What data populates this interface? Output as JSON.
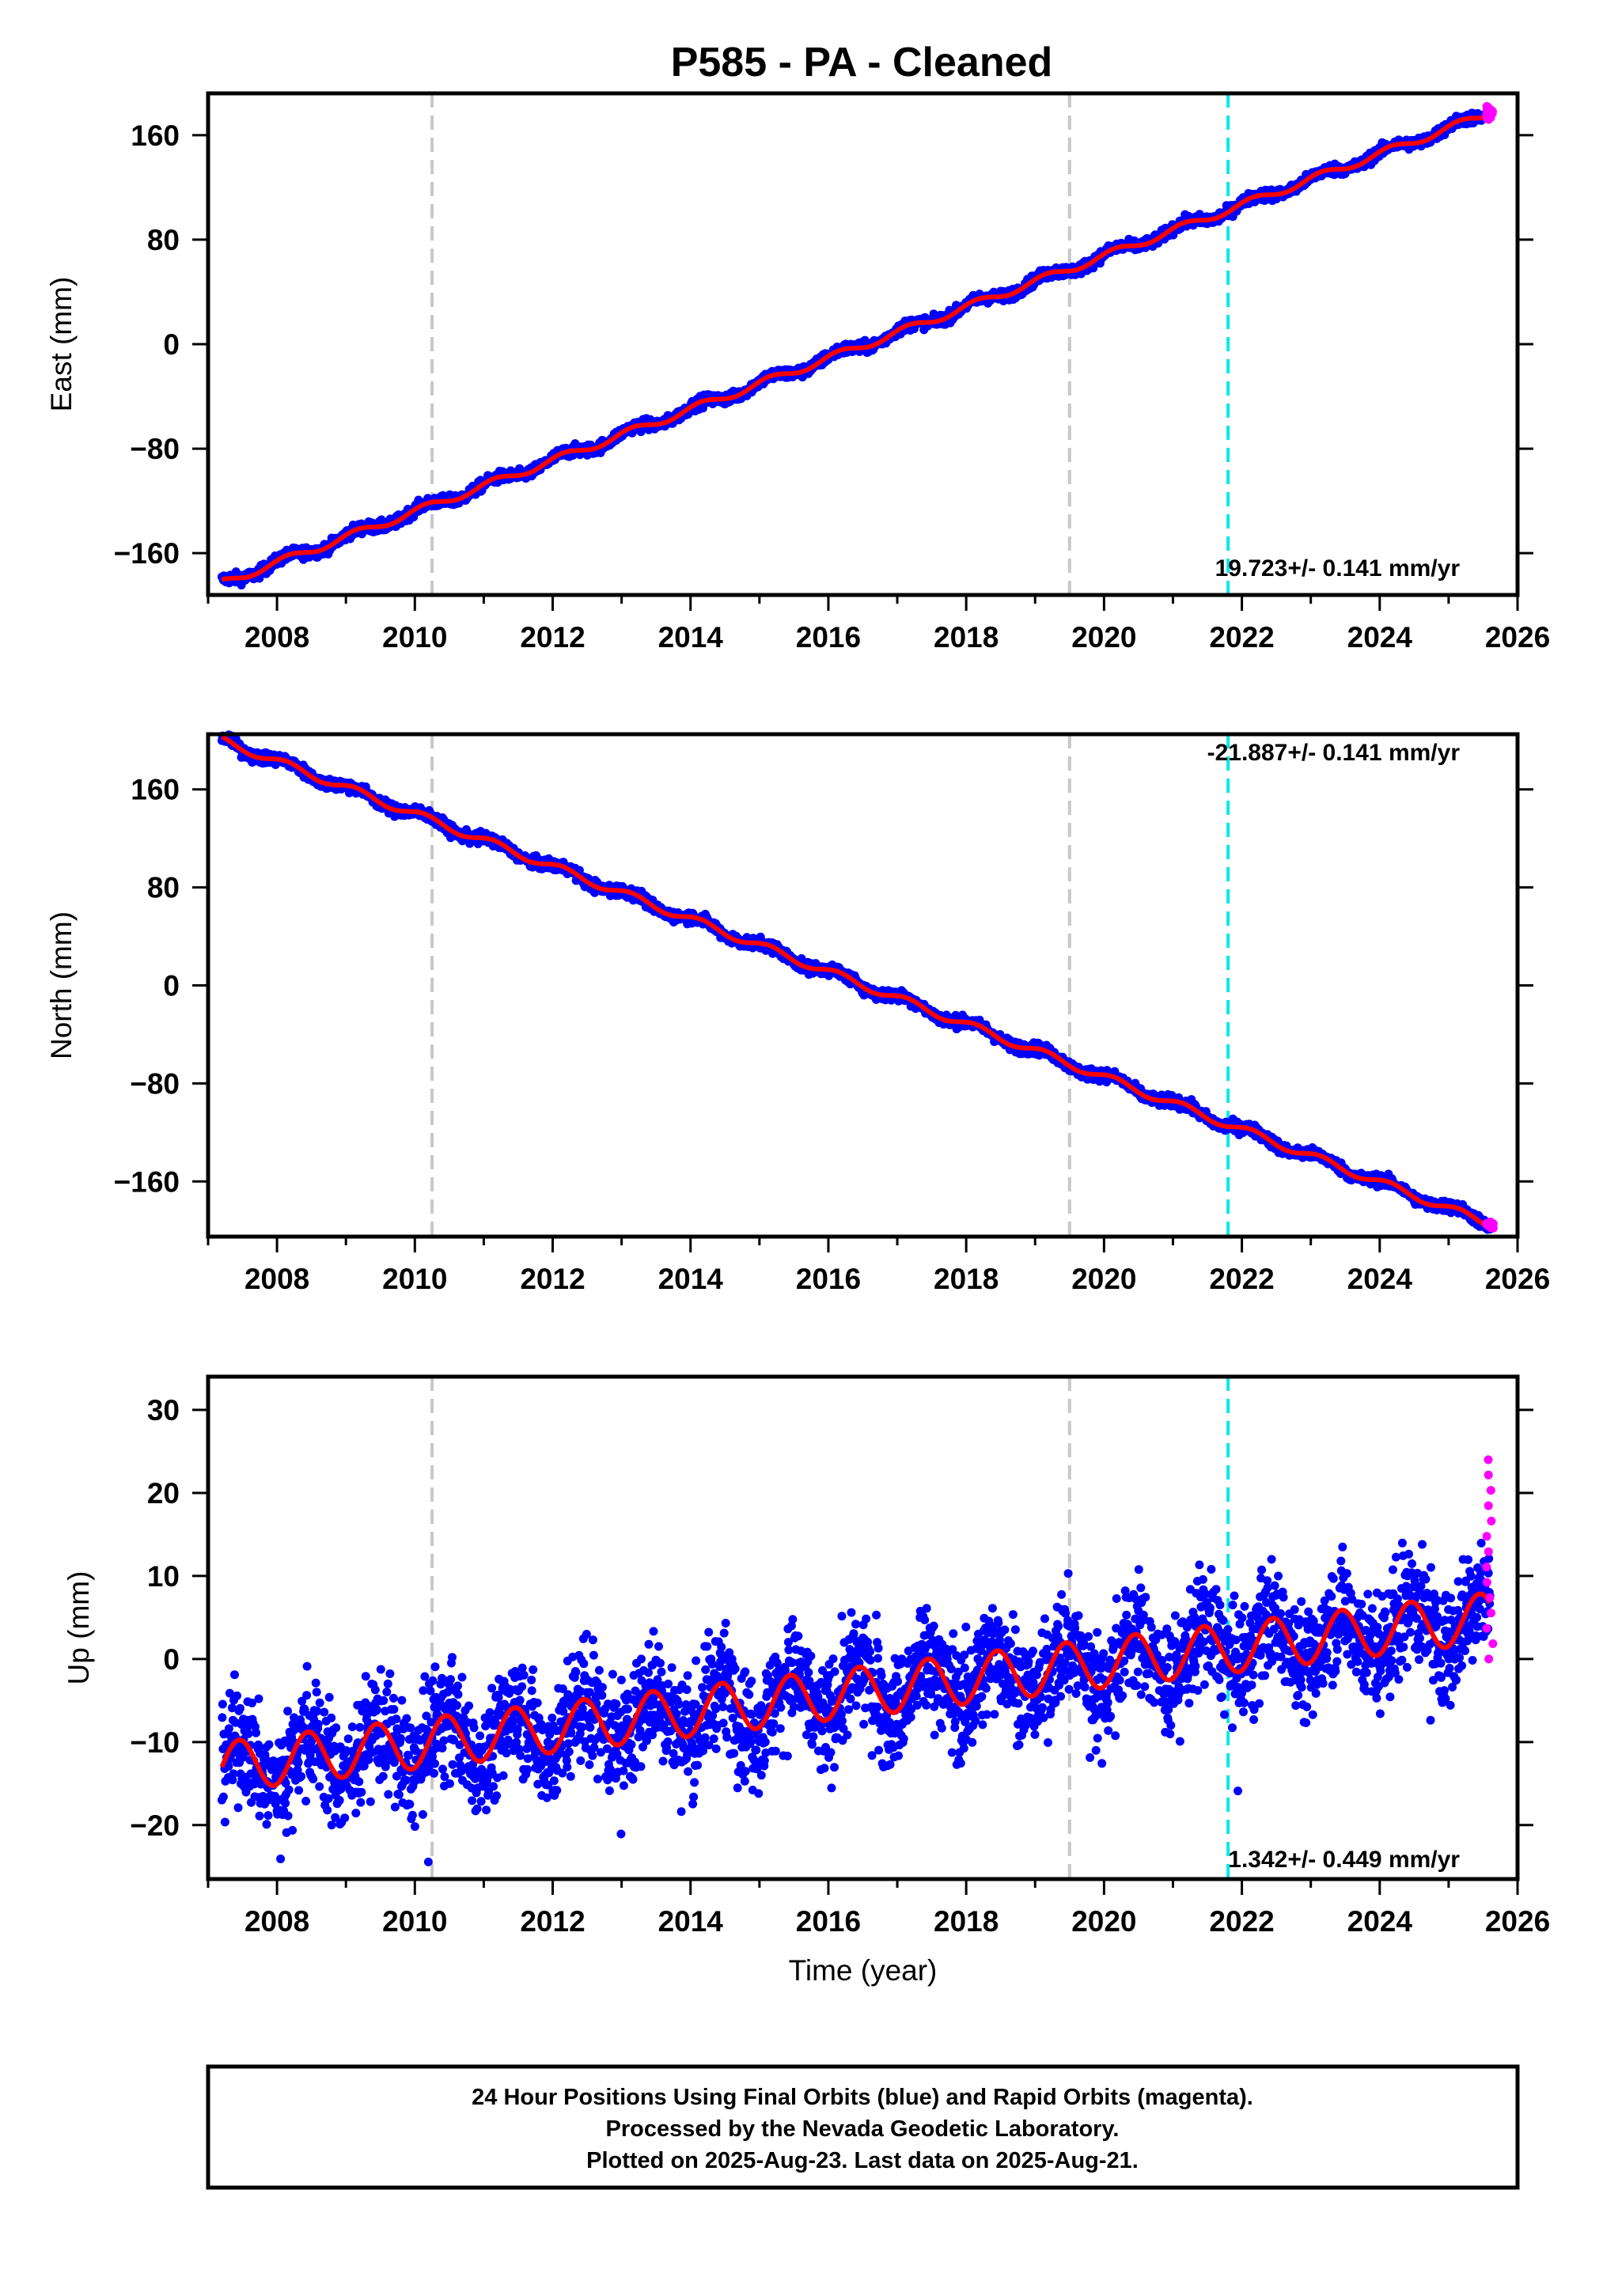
{
  "title": "P585  - PA - Cleaned",
  "chart_data": [
    {
      "type": "scatter",
      "ylabel": "East (mm)",
      "xlabel": "",
      "xlim": [
        2007.0,
        2026.0
      ],
      "ylim": [
        -192,
        192
      ],
      "xticks": [
        "2008",
        "2010",
        "2012",
        "2014",
        "2016",
        "2018",
        "2020",
        "2022",
        "2024",
        "2026"
      ],
      "yticks": [
        "160",
        "80",
        "0",
        "−80",
        "−160"
      ],
      "ytick_values": [
        160,
        80,
        0,
        -80,
        -160
      ],
      "rate_annotation": "19.723+/- 0.141 mm/yr",
      "series": [
        {
          "color": "#0000ff",
          "start": [
            2007.2,
            -183
          ],
          "end": [
            2025.6,
            177
          ]
        },
        {
          "color": "#ff0000",
          "start": [
            2007.2,
            -183
          ],
          "end": [
            2025.6,
            177
          ]
        },
        {
          "color": "#ff00ff",
          "start": [
            2025.55,
            172
          ],
          "end": [
            2025.65,
            182
          ]
        }
      ]
    },
    {
      "type": "scatter",
      "ylabel": "North (mm)",
      "xlabel": "",
      "xlim": [
        2007.0,
        2026.0
      ],
      "ylim": [
        -205,
        205
      ],
      "xticks": [
        "2008",
        "2010",
        "2012",
        "2014",
        "2016",
        "2018",
        "2020",
        "2022",
        "2024",
        "2026"
      ],
      "yticks": [
        "160",
        "80",
        "0",
        "−80",
        "−160"
      ],
      "ytick_values": [
        160,
        80,
        0,
        -80,
        -160
      ],
      "rate_annotation": "-21.887+/- 0.141 mm/yr",
      "series": [
        {
          "color": "#0000ff",
          "start": [
            2007.2,
            200
          ],
          "end": [
            2025.6,
            -195
          ]
        },
        {
          "color": "#ff0000",
          "start": [
            2007.2,
            200
          ],
          "end": [
            2025.6,
            -195
          ]
        },
        {
          "color": "#ff00ff",
          "start": [
            2025.55,
            -193
          ],
          "end": [
            2025.65,
            -198
          ]
        }
      ]
    },
    {
      "type": "scatter",
      "ylabel": "Up (mm)",
      "xlabel": "Time (year)",
      "xlim": [
        2007.0,
        2026.0
      ],
      "ylim": [
        -26.5,
        34
      ],
      "xticks": [
        "2008",
        "2010",
        "2012",
        "2014",
        "2016",
        "2018",
        "2020",
        "2022",
        "2024",
        "2026"
      ],
      "yticks": [
        "30",
        "20",
        "10",
        "0",
        "−10",
        "−20"
      ],
      "ytick_values": [
        30,
        20,
        10,
        0,
        -10,
        -20
      ],
      "rate_annotation": "1.342+/- 0.449 mm/yr",
      "series": [
        {
          "color": "#0000ff",
          "start": [
            2007.2,
            -13
          ],
          "end": [
            2025.6,
            5
          ],
          "seasonal_amplitude_mm": 3
        },
        {
          "color": "#ff0000",
          "start": [
            2007.2,
            -13
          ],
          "end": [
            2025.6,
            5
          ],
          "seasonal_amplitude_mm": 3
        },
        {
          "color": "#ff00ff",
          "start": [
            2025.55,
            0
          ],
          "end": [
            2025.65,
            24
          ]
        }
      ]
    }
  ],
  "event_lines": [
    {
      "x": 2010.25,
      "color": "#c8c8c8"
    },
    {
      "x": 2019.5,
      "color": "#c8c8c8"
    },
    {
      "x": 2021.8,
      "color": "#00e8e8"
    }
  ],
  "footer": {
    "line1": "24 Hour Positions Using Final Orbits (blue) and Rapid Orbits (magenta).",
    "line2": "Processed by the Nevada Geodetic Laboratory.",
    "line3": "Plotted on 2025-Aug-23. Last data on 2025-Aug-21."
  }
}
